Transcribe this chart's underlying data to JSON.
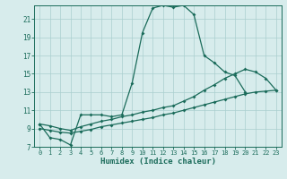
{
  "xlabel": "Humidex (Indice chaleur)",
  "bg_color": "#d7ecec",
  "grid_color": "#aacfcf",
  "line_color": "#1a6b5a",
  "xlim": [
    -0.5,
    23.5
  ],
  "ylim": [
    7,
    22.5
  ],
  "yticks": [
    7,
    9,
    11,
    13,
    15,
    17,
    19,
    21
  ],
  "xticks": [
    0,
    1,
    2,
    3,
    4,
    5,
    6,
    7,
    8,
    9,
    10,
    11,
    12,
    13,
    14,
    15,
    16,
    17,
    18,
    19,
    20,
    21,
    22,
    23
  ],
  "curve1_x": [
    0,
    1,
    2,
    3,
    4,
    5,
    6,
    7,
    8,
    9,
    10,
    11,
    12,
    13,
    14,
    15,
    16,
    17,
    18,
    19,
    20
  ],
  "curve1_y": [
    9.5,
    8.0,
    7.8,
    7.2,
    10.5,
    10.5,
    10.5,
    10.3,
    10.5,
    14.0,
    19.5,
    22.2,
    22.5,
    22.3,
    22.5,
    21.5,
    17.0,
    16.2,
    15.2,
    14.8,
    13.0
  ],
  "curve2_x": [
    0,
    1,
    2,
    3,
    4,
    5,
    6,
    7,
    8,
    9,
    10,
    11,
    12,
    13,
    14,
    15,
    16,
    17,
    18,
    19,
    20,
    21,
    22,
    23
  ],
  "curve2_y": [
    9.5,
    9.3,
    9.0,
    8.8,
    9.2,
    9.5,
    9.8,
    10.0,
    10.3,
    10.5,
    10.8,
    11.0,
    11.3,
    11.5,
    12.0,
    12.5,
    13.2,
    13.8,
    14.5,
    15.0,
    15.5,
    15.2,
    14.5,
    13.2
  ],
  "curve3_x": [
    0,
    1,
    2,
    3,
    4,
    5,
    6,
    7,
    8,
    9,
    10,
    11,
    12,
    13,
    14,
    15,
    16,
    17,
    18,
    19,
    20,
    21,
    22,
    23
  ],
  "curve3_y": [
    9.0,
    8.8,
    8.6,
    8.5,
    8.7,
    8.9,
    9.2,
    9.4,
    9.6,
    9.8,
    10.0,
    10.2,
    10.5,
    10.7,
    11.0,
    11.3,
    11.6,
    11.9,
    12.2,
    12.5,
    12.8,
    13.0,
    13.1,
    13.2
  ]
}
